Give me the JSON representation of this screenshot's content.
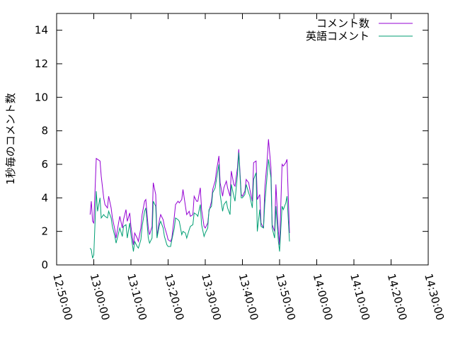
{
  "chart_data": {
    "type": "line",
    "title": "",
    "xlabel": "",
    "ylabel": "1秒毎のコメント数",
    "xlim": [
      "12:50:00",
      "14:30:00"
    ],
    "ylim": [
      0,
      15
    ],
    "x_ticks": [
      "12:50:00",
      "13:00:00",
      "13:10:00",
      "13:20:00",
      "13:30:00",
      "13:40:00",
      "13:50:00",
      "14:00:00",
      "14:10:00",
      "14:20:00",
      "14:30:00"
    ],
    "y_ticks": [
      "0",
      "2",
      "4",
      "6",
      "8",
      "10",
      "12",
      "14"
    ],
    "grid": false,
    "legend_position": "top-right",
    "series": [
      {
        "name": "コメント数",
        "color": "#9400d3",
        "points": [
          [
            "12:59:00",
            3.0
          ],
          [
            "12:59:20",
            3.8
          ],
          [
            "12:59:40",
            2.6
          ],
          [
            "13:00:00",
            2.5
          ],
          [
            "13:00:40",
            6.35
          ],
          [
            "13:01:00",
            6.3
          ],
          [
            "13:01:40",
            6.2
          ],
          [
            "13:02:00",
            5.3
          ],
          [
            "13:02:40",
            4.0
          ],
          [
            "13:03:00",
            3.6
          ],
          [
            "13:03:40",
            3.4
          ],
          [
            "13:04:00",
            4.1
          ],
          [
            "13:04:40",
            3.4
          ],
          [
            "13:05:00",
            2.8
          ],
          [
            "13:05:40",
            2.1
          ],
          [
            "13:06:00",
            1.6
          ],
          [
            "13:06:40",
            2.5
          ],
          [
            "13:07:00",
            2.9
          ],
          [
            "13:07:40",
            2.2
          ],
          [
            "13:08:00",
            2.7
          ],
          [
            "13:08:40",
            3.3
          ],
          [
            "13:09:00",
            2.6
          ],
          [
            "13:09:40",
            3.1
          ],
          [
            "13:10:00",
            2.3
          ],
          [
            "13:10:40",
            1.2
          ],
          [
            "13:11:00",
            1.9
          ],
          [
            "13:11:40",
            1.6
          ],
          [
            "13:12:00",
            1.4
          ],
          [
            "13:12:40",
            2.2
          ],
          [
            "13:13:00",
            3.0
          ],
          [
            "13:13:40",
            3.8
          ],
          [
            "13:14:00",
            3.9
          ],
          [
            "13:14:40",
            2.2
          ],
          [
            "13:15:00",
            1.8
          ],
          [
            "13:15:40",
            2.3
          ],
          [
            "13:16:00",
            4.9
          ],
          [
            "13:16:40",
            4.2
          ],
          [
            "13:17:00",
            1.7
          ],
          [
            "13:17:40",
            2.7
          ],
          [
            "13:18:00",
            3.0
          ],
          [
            "13:18:40",
            2.7
          ],
          [
            "13:19:00",
            2.3
          ],
          [
            "13:19:40",
            1.8
          ],
          [
            "13:20:00",
            1.5
          ],
          [
            "13:20:40",
            1.4
          ],
          [
            "13:21:00",
            1.6
          ],
          [
            "13:21:40",
            2.9
          ],
          [
            "13:22:00",
            3.6
          ],
          [
            "13:22:40",
            3.8
          ],
          [
            "13:23:00",
            3.7
          ],
          [
            "13:23:40",
            3.9
          ],
          [
            "13:24:00",
            4.5
          ],
          [
            "13:24:40",
            3.5
          ],
          [
            "13:25:00",
            3.0
          ],
          [
            "13:25:40",
            3.2
          ],
          [
            "13:26:00",
            2.9
          ],
          [
            "13:26:40",
            3.0
          ],
          [
            "13:27:00",
            4.1
          ],
          [
            "13:27:40",
            3.8
          ],
          [
            "13:28:00",
            3.8
          ],
          [
            "13:28:40",
            4.6
          ],
          [
            "13:29:00",
            3.3
          ],
          [
            "13:29:40",
            2.3
          ],
          [
            "13:30:00",
            2.2
          ],
          [
            "13:30:40",
            2.5
          ],
          [
            "13:31:00",
            3.2
          ],
          [
            "13:31:40",
            3.8
          ],
          [
            "13:32:00",
            4.5
          ],
          [
            "13:32:40",
            5.0
          ],
          [
            "13:33:00",
            5.6
          ],
          [
            "13:33:40",
            6.5
          ],
          [
            "13:34:00",
            4.9
          ],
          [
            "13:34:40",
            4.1
          ],
          [
            "13:35:00",
            4.6
          ],
          [
            "13:35:40",
            5.0
          ],
          [
            "13:36:00",
            4.6
          ],
          [
            "13:36:40",
            4.1
          ],
          [
            "13:37:00",
            5.6
          ],
          [
            "13:37:40",
            4.8
          ],
          [
            "13:38:00",
            4.7
          ],
          [
            "13:38:40",
            5.8
          ],
          [
            "13:39:00",
            6.9
          ],
          [
            "13:39:40",
            4.2
          ],
          [
            "13:40:00",
            4.1
          ],
          [
            "13:40:40",
            4.4
          ],
          [
            "13:41:00",
            5.1
          ],
          [
            "13:41:40",
            4.9
          ],
          [
            "13:42:00",
            4.5
          ],
          [
            "13:42:40",
            3.8
          ],
          [
            "13:43:00",
            6.1
          ],
          [
            "13:43:40",
            6.2
          ],
          [
            "13:44:00",
            3.9
          ],
          [
            "13:44:40",
            4.2
          ],
          [
            "13:45:00",
            2.5
          ],
          [
            "13:45:40",
            2.2
          ],
          [
            "13:46:00",
            4.5
          ],
          [
            "13:46:40",
            6.3
          ],
          [
            "13:47:00",
            7.5
          ],
          [
            "13:47:40",
            5.8
          ],
          [
            "13:48:00",
            2.4
          ],
          [
            "13:48:40",
            2.0
          ],
          [
            "13:49:00",
            4.8
          ],
          [
            "13:49:40",
            2.0
          ],
          [
            "13:50:00",
            1.2
          ],
          [
            "13:50:40",
            6.0
          ],
          [
            "13:51:00",
            5.9
          ],
          [
            "13:51:40",
            6.1
          ],
          [
            "13:52:00",
            6.3
          ],
          [
            "13:52:40",
            1.9
          ]
        ]
      },
      {
        "name": "英語コメント",
        "color": "#009e73",
        "points": [
          [
            "12:59:00",
            1.0
          ],
          [
            "12:59:20",
            0.9
          ],
          [
            "12:59:40",
            0.4
          ],
          [
            "13:00:00",
            0.6
          ],
          [
            "13:00:40",
            4.4
          ],
          [
            "13:01:00",
            3.2
          ],
          [
            "13:01:40",
            4.0
          ],
          [
            "13:02:00",
            2.8
          ],
          [
            "13:02:40",
            3.0
          ],
          [
            "13:03:00",
            2.9
          ],
          [
            "13:03:40",
            2.8
          ],
          [
            "13:04:00",
            3.2
          ],
          [
            "13:04:40",
            2.8
          ],
          [
            "13:05:00",
            2.3
          ],
          [
            "13:05:40",
            1.7
          ],
          [
            "13:06:00",
            1.3
          ],
          [
            "13:06:40",
            1.9
          ],
          [
            "13:07:00",
            2.2
          ],
          [
            "13:07:40",
            1.7
          ],
          [
            "13:08:00",
            2.3
          ],
          [
            "13:08:40",
            2.4
          ],
          [
            "13:09:00",
            1.6
          ],
          [
            "13:09:40",
            2.5
          ],
          [
            "13:10:00",
            1.8
          ],
          [
            "13:10:40",
            0.8
          ],
          [
            "13:11:00",
            1.4
          ],
          [
            "13:11:40",
            1.1
          ],
          [
            "13:12:00",
            1.0
          ],
          [
            "13:12:40",
            1.5
          ],
          [
            "13:13:00",
            2.3
          ],
          [
            "13:13:40",
            3.2
          ],
          [
            "13:14:00",
            3.4
          ],
          [
            "13:14:40",
            1.6
          ],
          [
            "13:15:00",
            1.3
          ],
          [
            "13:15:40",
            1.6
          ],
          [
            "13:16:00",
            3.8
          ],
          [
            "13:16:40",
            3.5
          ],
          [
            "13:17:00",
            1.6
          ],
          [
            "13:17:40",
            2.4
          ],
          [
            "13:18:00",
            2.6
          ],
          [
            "13:18:40",
            2.2
          ],
          [
            "13:19:00",
            1.7
          ],
          [
            "13:19:40",
            1.2
          ],
          [
            "13:20:00",
            1.1
          ],
          [
            "13:20:40",
            1.1
          ],
          [
            "13:21:00",
            1.5
          ],
          [
            "13:21:40",
            2.2
          ],
          [
            "13:22:00",
            2.8
          ],
          [
            "13:22:40",
            2.7
          ],
          [
            "13:23:00",
            2.6
          ],
          [
            "13:23:40",
            1.8
          ],
          [
            "13:24:00",
            2.0
          ],
          [
            "13:24:40",
            1.9
          ],
          [
            "13:25:00",
            1.6
          ],
          [
            "13:25:40",
            2.1
          ],
          [
            "13:26:00",
            2.3
          ],
          [
            "13:26:40",
            2.4
          ],
          [
            "13:27:00",
            3.1
          ],
          [
            "13:27:40",
            3.0
          ],
          [
            "13:28:00",
            2.9
          ],
          [
            "13:28:40",
            3.6
          ],
          [
            "13:29:00",
            2.4
          ],
          [
            "13:29:40",
            1.7
          ],
          [
            "13:30:00",
            1.9
          ],
          [
            "13:30:40",
            2.2
          ],
          [
            "13:31:00",
            3.3
          ],
          [
            "13:31:40",
            3.5
          ],
          [
            "13:32:00",
            4.3
          ],
          [
            "13:32:40",
            4.6
          ],
          [
            "13:33:00",
            5.1
          ],
          [
            "13:33:40",
            6.0
          ],
          [
            "13:34:00",
            4.2
          ],
          [
            "13:34:40",
            3.2
          ],
          [
            "13:35:00",
            3.6
          ],
          [
            "13:35:40",
            3.8
          ],
          [
            "13:36:00",
            3.4
          ],
          [
            "13:36:40",
            3.0
          ],
          [
            "13:37:00",
            4.8
          ],
          [
            "13:37:40",
            4.1
          ],
          [
            "13:38:00",
            3.8
          ],
          [
            "13:38:40",
            5.4
          ],
          [
            "13:39:00",
            6.7
          ],
          [
            "13:39:40",
            4.0
          ],
          [
            "13:40:00",
            4.0
          ],
          [
            "13:40:40",
            4.2
          ],
          [
            "13:41:00",
            4.8
          ],
          [
            "13:41:40",
            4.3
          ],
          [
            "13:42:00",
            4.1
          ],
          [
            "13:42:40",
            3.4
          ],
          [
            "13:43:00",
            5.1
          ],
          [
            "13:43:40",
            5.5
          ],
          [
            "13:44:00",
            2.0
          ],
          [
            "13:44:40",
            3.3
          ],
          [
            "13:45:00",
            2.3
          ],
          [
            "13:45:40",
            2.2
          ],
          [
            "13:46:00",
            3.6
          ],
          [
            "13:46:40",
            5.4
          ],
          [
            "13:47:00",
            6.3
          ],
          [
            "13:47:40",
            5.2
          ],
          [
            "13:48:00",
            2.2
          ],
          [
            "13:48:40",
            1.6
          ],
          [
            "13:49:00",
            3.5
          ],
          [
            "13:49:40",
            1.4
          ],
          [
            "13:50:00",
            0.8
          ],
          [
            "13:50:40",
            3.5
          ],
          [
            "13:51:00",
            3.3
          ],
          [
            "13:51:40",
            3.7
          ],
          [
            "13:52:00",
            4.1
          ],
          [
            "13:52:40",
            1.4
          ]
        ]
      }
    ]
  }
}
